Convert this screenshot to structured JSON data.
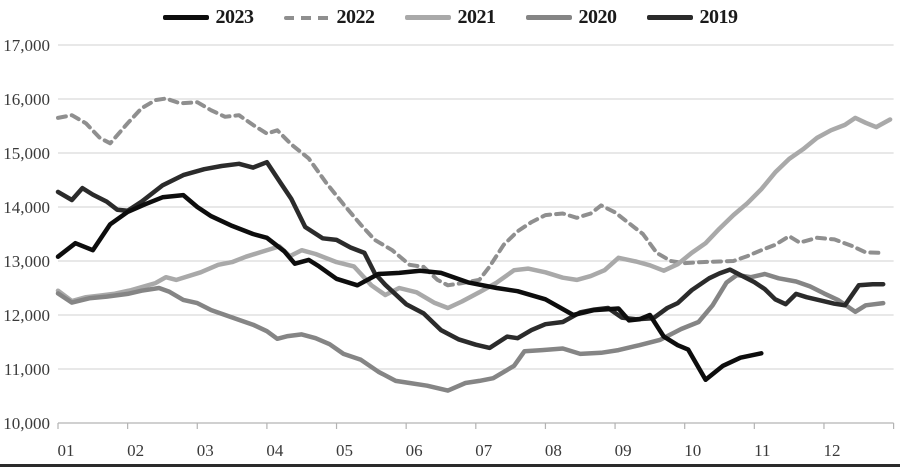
{
  "chart_data": {
    "type": "line",
    "title": "",
    "xlabel": "",
    "ylabel": "",
    "x_axis": {
      "labels": [
        "01",
        "02",
        "03",
        "04",
        "05",
        "06",
        "07",
        "08",
        "09",
        "10",
        "11",
        "12"
      ],
      "range": [
        1,
        13.0
      ]
    },
    "y_axis": {
      "min": 10000,
      "max": 17000,
      "tick_step": 1000,
      "tick_labels": [
        "10,000",
        "11,000",
        "12,000",
        "13,000",
        "14,000",
        "15,000",
        "16,000",
        "17,000"
      ]
    },
    "grid": "horizontal",
    "legend_position": "top",
    "colors": {
      "grid": "#d9d9d9",
      "axis": "#b3b3b3",
      "tick_text": "#3a3a3a"
    },
    "series": [
      {
        "name": "2023",
        "color": "#0d0d0d",
        "style": "solid",
        "width": 4.5,
        "x": [
          1.0,
          1.25,
          1.5,
          1.75,
          2.0,
          2.25,
          2.5,
          2.8,
          3.0,
          3.2,
          3.5,
          3.8,
          4.0,
          4.25,
          4.4,
          4.6,
          4.75,
          5.0,
          5.3,
          5.6,
          5.9,
          6.2,
          6.5,
          6.9,
          7.3,
          7.6,
          8.0,
          8.4,
          8.7,
          9.05,
          9.2,
          9.35,
          9.5,
          9.7,
          9.9,
          10.05,
          10.3,
          10.55,
          10.8,
          11.1
        ],
        "values": [
          13080,
          13330,
          13200,
          13680,
          13910,
          14050,
          14180,
          14220,
          14000,
          13830,
          13650,
          13500,
          13430,
          13180,
          12950,
          13020,
          12900,
          12670,
          12550,
          12760,
          12780,
          12820,
          12780,
          12600,
          12500,
          12440,
          12290,
          12000,
          12090,
          12120,
          11900,
          11920,
          12000,
          11600,
          11440,
          11360,
          10800,
          11060,
          11210,
          11290
        ]
      },
      {
        "name": "2022",
        "color": "#8f8f8f",
        "style": "dashed",
        "width": 4,
        "x": [
          1.0,
          1.2,
          1.4,
          1.6,
          1.75,
          2.0,
          2.2,
          2.4,
          2.55,
          2.75,
          3.0,
          3.2,
          3.4,
          3.6,
          3.8,
          4.0,
          4.15,
          4.35,
          4.6,
          4.85,
          5.1,
          5.35,
          5.55,
          5.8,
          6.05,
          6.25,
          6.45,
          6.6,
          6.8,
          7.05,
          7.2,
          7.4,
          7.6,
          7.8,
          8.0,
          8.25,
          8.45,
          8.65,
          8.8,
          9.0,
          9.2,
          9.4,
          9.6,
          9.8,
          10.0,
          10.25,
          10.5,
          10.7,
          10.9,
          11.1,
          11.3,
          11.5,
          11.65,
          11.9,
          12.15,
          12.4,
          12.6,
          12.85
        ],
        "values": [
          15650,
          15700,
          15550,
          15280,
          15180,
          15550,
          15830,
          15980,
          16010,
          15920,
          15940,
          15790,
          15670,
          15700,
          15520,
          15360,
          15420,
          15160,
          14900,
          14450,
          14050,
          13670,
          13390,
          13200,
          12930,
          12890,
          12650,
          12550,
          12590,
          12650,
          12900,
          13300,
          13550,
          13720,
          13850,
          13880,
          13800,
          13880,
          14030,
          13900,
          13700,
          13500,
          13150,
          13000,
          12960,
          12980,
          12990,
          13000,
          13090,
          13200,
          13300,
          13460,
          13340,
          13430,
          13400,
          13280,
          13160,
          13150
        ]
      },
      {
        "name": "2021",
        "color": "#a9a9a9",
        "style": "solid",
        "width": 4.5,
        "x": [
          1.0,
          1.2,
          1.4,
          1.6,
          1.8,
          2.05,
          2.4,
          2.55,
          2.7,
          3.05,
          3.3,
          3.5,
          3.7,
          3.9,
          4.18,
          4.33,
          4.5,
          4.7,
          5.0,
          5.25,
          5.5,
          5.7,
          5.9,
          6.15,
          6.4,
          6.6,
          6.8,
          7.05,
          7.3,
          7.55,
          7.75,
          8.0,
          8.25,
          8.45,
          8.65,
          8.85,
          9.05,
          9.3,
          9.5,
          9.7,
          9.9,
          10.1,
          10.3,
          10.5,
          10.7,
          10.9,
          11.1,
          11.3,
          11.5,
          11.7,
          11.9,
          12.1,
          12.3,
          12.45,
          12.6,
          12.75,
          12.95
        ],
        "values": [
          12450,
          12260,
          12330,
          12360,
          12390,
          12460,
          12590,
          12700,
          12650,
          12790,
          12930,
          12980,
          13080,
          13160,
          13270,
          13090,
          13200,
          13130,
          12980,
          12900,
          12550,
          12370,
          12500,
          12420,
          12230,
          12130,
          12250,
          12420,
          12600,
          12830,
          12860,
          12790,
          12690,
          12650,
          12720,
          12830,
          13060,
          12990,
          12920,
          12820,
          12940,
          13150,
          13330,
          13600,
          13850,
          14070,
          14330,
          14640,
          14890,
          15070,
          15280,
          15420,
          15520,
          15650,
          15560,
          15480,
          15620
        ]
      },
      {
        "name": "2020",
        "color": "#858585",
        "style": "solid",
        "width": 4.5,
        "x": [
          1.0,
          1.2,
          1.45,
          1.7,
          2.0,
          2.2,
          2.45,
          2.6,
          2.8,
          3.0,
          3.2,
          3.4,
          3.6,
          3.8,
          4.0,
          4.15,
          4.3,
          4.5,
          4.7,
          4.9,
          5.1,
          5.35,
          5.6,
          5.85,
          6.05,
          6.3,
          6.6,
          6.85,
          7.05,
          7.25,
          7.55,
          7.7,
          7.95,
          8.25,
          8.5,
          8.8,
          9.05,
          9.35,
          9.65,
          9.95,
          10.2,
          10.4,
          10.6,
          10.75,
          10.95,
          11.15,
          11.35,
          11.6,
          11.8,
          12.0,
          12.2,
          12.45,
          12.6,
          12.85
        ],
        "values": [
          12400,
          12230,
          12310,
          12340,
          12390,
          12450,
          12500,
          12430,
          12280,
          12220,
          12090,
          12000,
          11910,
          11820,
          11700,
          11560,
          11610,
          11640,
          11570,
          11460,
          11280,
          11170,
          10950,
          10780,
          10740,
          10690,
          10600,
          10740,
          10780,
          10830,
          11060,
          11330,
          11350,
          11380,
          11280,
          11300,
          11350,
          11440,
          11540,
          11740,
          11870,
          12180,
          12600,
          12740,
          12700,
          12760,
          12680,
          12620,
          12530,
          12400,
          12280,
          12060,
          12180,
          12220
        ]
      },
      {
        "name": "2019",
        "color": "#2b2b2b",
        "style": "solid",
        "width": 4.5,
        "x": [
          1.0,
          1.2,
          1.35,
          1.5,
          1.7,
          1.85,
          2.0,
          2.2,
          2.5,
          2.8,
          3.1,
          3.35,
          3.6,
          3.8,
          4.0,
          4.2,
          4.35,
          4.55,
          4.8,
          5.0,
          5.2,
          5.4,
          5.55,
          5.7,
          6.0,
          6.25,
          6.5,
          6.75,
          7.0,
          7.2,
          7.45,
          7.6,
          7.8,
          8.0,
          8.25,
          8.5,
          8.7,
          8.9,
          9.1,
          9.3,
          9.55,
          9.75,
          9.9,
          10.1,
          10.35,
          10.5,
          10.65,
          10.8,
          11.0,
          11.15,
          11.3,
          11.45,
          11.6,
          11.75,
          11.95,
          12.15,
          12.3,
          12.5,
          12.7,
          12.85
        ],
        "values": [
          14280,
          14130,
          14350,
          14230,
          14100,
          13950,
          13930,
          14100,
          14400,
          14590,
          14700,
          14760,
          14800,
          14730,
          14830,
          14440,
          14150,
          13630,
          13420,
          13390,
          13250,
          13150,
          12770,
          12560,
          12200,
          12030,
          11720,
          11550,
          11450,
          11390,
          11600,
          11570,
          11720,
          11830,
          11870,
          12050,
          12100,
          12130,
          11950,
          11920,
          11940,
          12130,
          12220,
          12460,
          12680,
          12770,
          12840,
          12740,
          12610,
          12480,
          12290,
          12200,
          12390,
          12330,
          12270,
          12210,
          12180,
          12550,
          12570,
          12570
        ]
      }
    ]
  }
}
